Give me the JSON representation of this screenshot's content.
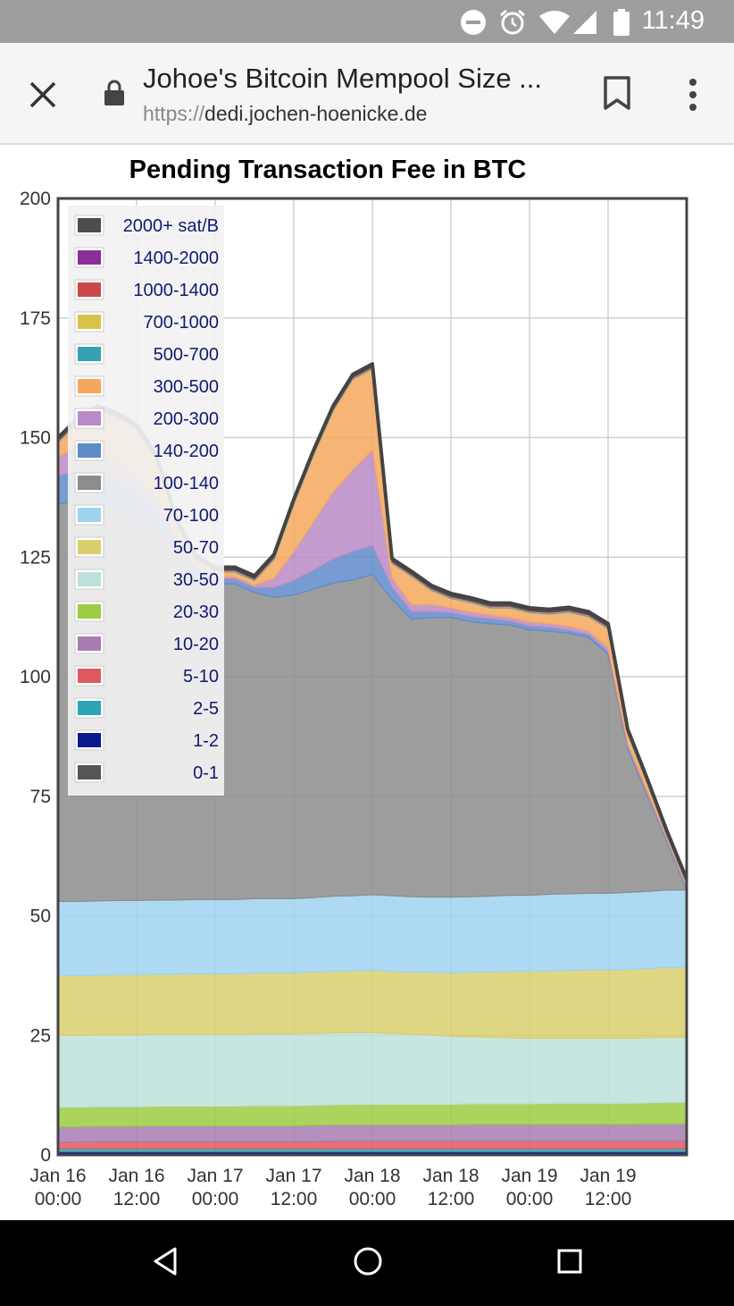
{
  "status_bar": {
    "time": "11:49",
    "icons": [
      "do-not-disturb-icon",
      "alarm-icon",
      "wifi-icon",
      "signal-icon",
      "battery-icon"
    ]
  },
  "browser": {
    "page_title": "Johoe's Bitcoin Mempool Size ...",
    "url_scheme": "https://",
    "url_host": "dedi.jochen-hoenicke.de",
    "icons": [
      "close-icon",
      "lock-icon",
      "bookmark-icon",
      "more-vert-icon"
    ]
  },
  "nav_bar": {
    "icons": [
      "back-triangle-icon",
      "home-circle-icon",
      "recents-square-icon"
    ]
  },
  "chart_data": {
    "type": "area",
    "stacked": true,
    "title": "Pending Transaction Fee in BTC",
    "xlabel": "",
    "ylabel": "",
    "ylim": [
      0,
      200
    ],
    "yticks": [
      0,
      25,
      50,
      75,
      100,
      125,
      150,
      175,
      200
    ],
    "x": [
      0,
      3,
      6,
      9,
      12,
      15,
      18,
      21,
      24,
      27,
      30,
      33,
      36,
      39,
      42,
      45,
      48,
      51,
      54,
      57,
      60,
      63,
      66,
      69,
      72,
      75,
      78,
      81,
      84,
      87,
      90,
      93,
      96
    ],
    "xticks": [
      0,
      12,
      24,
      36,
      48,
      60,
      72,
      84
    ],
    "xtick_labels": [
      "Jan 16\n00:00",
      "Jan 16\n12:00",
      "Jan 17\n00:00",
      "Jan 17\n12:00",
      "Jan 18\n00:00",
      "Jan 18\n12:00",
      "Jan 19\n00:00",
      "Jan 19\n12:00"
    ],
    "x_unit": "hours since Jan 16 00:00",
    "grid": true,
    "legend_position": "top-left",
    "series": [
      {
        "name": "0-1",
        "color": "#555555",
        "values": [
          0.3,
          0.3,
          0.3,
          0.3,
          0.3,
          0.3,
          0.3,
          0.3,
          0.3,
          0.3,
          0.3,
          0.3,
          0.3,
          0.3,
          0.3,
          0.3,
          0.3,
          0.3,
          0.3,
          0.3,
          0.3,
          0.3,
          0.3,
          0.3,
          0.3,
          0.3,
          0.3,
          0.3,
          0.3,
          0.3,
          0.3,
          0.3,
          0.3
        ]
      },
      {
        "name": "1-2",
        "color": "#0a1a8c",
        "values": [
          0.4,
          0.4,
          0.4,
          0.4,
          0.4,
          0.4,
          0.4,
          0.4,
          0.4,
          0.4,
          0.4,
          0.4,
          0.4,
          0.4,
          0.4,
          0.4,
          0.4,
          0.4,
          0.4,
          0.4,
          0.4,
          0.4,
          0.4,
          0.4,
          0.4,
          0.4,
          0.4,
          0.4,
          0.4,
          0.4,
          0.4,
          0.4,
          0.4
        ]
      },
      {
        "name": "2-5",
        "color": "#2fa4b5",
        "values": [
          0.6,
          0.6,
          0.6,
          0.6,
          0.6,
          0.6,
          0.6,
          0.6,
          0.6,
          0.6,
          0.6,
          0.6,
          0.6,
          0.6,
          0.6,
          0.6,
          0.6,
          0.6,
          0.6,
          0.6,
          0.6,
          0.6,
          0.6,
          0.6,
          0.6,
          0.6,
          0.6,
          0.6,
          0.6,
          0.6,
          0.6,
          0.6,
          0.6
        ]
      },
      {
        "name": "5-10",
        "color": "#e05860",
        "values": [
          1.4,
          1.4,
          1.5,
          1.5,
          1.5,
          1.5,
          1.5,
          1.5,
          1.5,
          1.5,
          1.5,
          1.5,
          1.5,
          1.5,
          1.6,
          1.6,
          1.6,
          1.6,
          1.6,
          1.6,
          1.6,
          1.6,
          1.6,
          1.6,
          1.6,
          1.6,
          1.6,
          1.6,
          1.6,
          1.6,
          1.6,
          1.6,
          1.6
        ]
      },
      {
        "name": "10-20",
        "color": "#a87cb0",
        "values": [
          3.2,
          3.2,
          3.2,
          3.2,
          3.2,
          3.3,
          3.3,
          3.3,
          3.3,
          3.3,
          3.3,
          3.3,
          3.3,
          3.4,
          3.4,
          3.4,
          3.4,
          3.4,
          3.4,
          3.4,
          3.4,
          3.5,
          3.5,
          3.5,
          3.5,
          3.5,
          3.5,
          3.5,
          3.5,
          3.5,
          3.6,
          3.6,
          3.6
        ]
      },
      {
        "name": "20-30",
        "color": "#9ccc42",
        "values": [
          4.1,
          4.1,
          4.1,
          4.1,
          4.1,
          4.1,
          4.1,
          4.1,
          4.1,
          4.1,
          4.2,
          4.2,
          4.2,
          4.2,
          4.2,
          4.3,
          4.3,
          4.3,
          4.3,
          4.3,
          4.3,
          4.3,
          4.3,
          4.3,
          4.3,
          4.4,
          4.4,
          4.4,
          4.4,
          4.4,
          4.4,
          4.5,
          4.5
        ]
      },
      {
        "name": "30-50",
        "color": "#bde0dc",
        "values": [
          15.0,
          15.0,
          15.0,
          15.0,
          15.0,
          15.0,
          15.0,
          15.0,
          15.0,
          15.0,
          15.0,
          15.0,
          15.0,
          15.0,
          15.0,
          15.0,
          15.0,
          14.8,
          14.6,
          14.5,
          14.2,
          14.0,
          13.9,
          13.8,
          13.7,
          13.6,
          13.6,
          13.6,
          13.6,
          13.6,
          13.6,
          13.6,
          13.6
        ]
      },
      {
        "name": "50-70",
        "color": "#d9cf6e",
        "values": [
          12.5,
          12.5,
          12.5,
          12.6,
          12.6,
          12.6,
          12.6,
          12.7,
          12.7,
          12.7,
          12.8,
          12.8,
          12.8,
          12.9,
          12.9,
          12.9,
          13.0,
          13.0,
          13.0,
          13.1,
          13.3,
          13.5,
          13.7,
          13.9,
          14.0,
          14.1,
          14.2,
          14.3,
          14.3,
          14.4,
          14.5,
          14.6,
          14.6
        ]
      },
      {
        "name": "70-100",
        "color": "#9fd3f0",
        "values": [
          15.5,
          15.5,
          15.5,
          15.5,
          15.5,
          15.5,
          15.5,
          15.5,
          15.5,
          15.5,
          15.5,
          15.5,
          15.5,
          15.5,
          15.7,
          15.7,
          15.8,
          15.8,
          15.8,
          15.7,
          15.8,
          15.8,
          15.8,
          15.9,
          15.9,
          16.0,
          16.0,
          16.0,
          16.0,
          16.1,
          16.1,
          16.2,
          16.2
        ]
      },
      {
        "name": "100-140",
        "color": "#8c8c8c",
        "values": [
          83.0,
          84.0,
          83.5,
          82.0,
          80.0,
          78.0,
          73.0,
          68.0,
          66.0,
          66.0,
          64.0,
          63.0,
          63.5,
          64.5,
          65.5,
          66.0,
          67.0,
          62.0,
          58.0,
          58.5,
          58.5,
          57.5,
          57.0,
          56.5,
          55.5,
          55.0,
          54.5,
          53.5,
          50.0,
          30.0,
          20.0,
          10.0,
          0.0
        ]
      },
      {
        "name": "140-200",
        "color": "#5f8bc9",
        "values": [
          6.0,
          6.0,
          6.0,
          6.0,
          5.5,
          4.0,
          2.0,
          1.0,
          1.0,
          1.0,
          1.0,
          2.0,
          3.0,
          4.0,
          5.0,
          6.0,
          6.0,
          2.5,
          1.5,
          1.2,
          1.0,
          1.0,
          1.0,
          0.8,
          0.8,
          0.8,
          0.6,
          0.6,
          0.6,
          0.5,
          0.4,
          0.4,
          0.4
        ]
      },
      {
        "name": "200-300",
        "color": "#b98ac7",
        "values": [
          4.0,
          5.0,
          5.0,
          4.0,
          3.0,
          2.0,
          1.0,
          0.5,
          0.5,
          0.5,
          0.5,
          2.0,
          6.0,
          10.0,
          14.0,
          17.0,
          20.0,
          2.0,
          1.5,
          1.5,
          1.0,
          1.0,
          0.8,
          0.8,
          0.8,
          0.8,
          0.8,
          0.8,
          0.8,
          0.6,
          0.6,
          0.4,
          0.4
        ]
      },
      {
        "name": "300-500",
        "color": "#f5a75d",
        "values": [
          3.0,
          5.0,
          8.0,
          9.0,
          10.0,
          8.0,
          3.0,
          1.5,
          1.0,
          1.0,
          1.0,
          4.0,
          10.0,
          14.0,
          17.0,
          19.0,
          17.0,
          3.0,
          6.0,
          3.0,
          2.0,
          2.0,
          1.5,
          2.0,
          2.0,
          2.0,
          3.0,
          3.0,
          4.0,
          2.0,
          1.5,
          0.5,
          0.5
        ]
      },
      {
        "name": "500-700",
        "color": "#36a1b2",
        "values": [
          0.2,
          0.2,
          0.2,
          0.2,
          0.2,
          0.2,
          0.2,
          0.2,
          0.2,
          0.2,
          0.2,
          0.2,
          0.2,
          0.2,
          0.2,
          0.2,
          0.2,
          0.2,
          0.2,
          0.2,
          0.2,
          0.2,
          0.2,
          0.2,
          0.2,
          0.2,
          0.2,
          0.2,
          0.2,
          0.2,
          0.2,
          0.2,
          0.2
        ]
      },
      {
        "name": "700-1000",
        "color": "#d8c34a",
        "values": [
          0.1,
          0.1,
          0.1,
          0.1,
          0.1,
          0.1,
          0.1,
          0.1,
          0.1,
          0.1,
          0.1,
          0.1,
          0.1,
          0.1,
          0.1,
          0.1,
          0.1,
          0.1,
          0.1,
          0.1,
          0.1,
          0.1,
          0.1,
          0.1,
          0.1,
          0.1,
          0.1,
          0.1,
          0.1,
          0.1,
          0.1,
          0.1,
          0.1
        ]
      },
      {
        "name": "1000-1400",
        "color": "#c84a48",
        "values": [
          0.1,
          0.1,
          0.1,
          0.1,
          0.1,
          0.1,
          0.1,
          0.1,
          0.1,
          0.1,
          0.1,
          0.1,
          0.1,
          0.1,
          0.1,
          0.1,
          0.1,
          0.1,
          0.1,
          0.1,
          0.1,
          0.1,
          0.1,
          0.1,
          0.1,
          0.1,
          0.1,
          0.1,
          0.1,
          0.1,
          0.1,
          0.1,
          0.1
        ]
      },
      {
        "name": "1400-2000",
        "color": "#8a2f95",
        "values": [
          0.1,
          0.1,
          0.1,
          0.1,
          0.1,
          0.1,
          0.1,
          0.1,
          0.1,
          0.1,
          0.1,
          0.1,
          0.1,
          0.1,
          0.1,
          0.1,
          0.1,
          0.1,
          0.1,
          0.1,
          0.1,
          0.1,
          0.1,
          0.1,
          0.1,
          0.1,
          0.1,
          0.1,
          0.1,
          0.1,
          0.1,
          0.1,
          0.1
        ]
      },
      {
        "name": "2000+ sat/B",
        "color": "#4d4d4d",
        "values": [
          0.5,
          0.5,
          0.5,
          0.5,
          0.5,
          0.5,
          0.5,
          0.5,
          0.5,
          0.5,
          0.5,
          0.5,
          0.5,
          0.5,
          0.5,
          0.5,
          0.5,
          0.5,
          0.5,
          0.5,
          0.5,
          0.5,
          0.5,
          0.5,
          0.5,
          0.5,
          0.5,
          0.5,
          0.5,
          0.5,
          0.5,
          0.5,
          0.5
        ]
      }
    ],
    "legend_order": [
      "2000+ sat/B",
      "1400-2000",
      "1000-1400",
      "700-1000",
      "500-700",
      "300-500",
      "200-300",
      "140-200",
      "100-140",
      "70-100",
      "50-70",
      "30-50",
      "20-30",
      "10-20",
      "5-10",
      "2-5",
      "1-2",
      "0-1"
    ]
  }
}
